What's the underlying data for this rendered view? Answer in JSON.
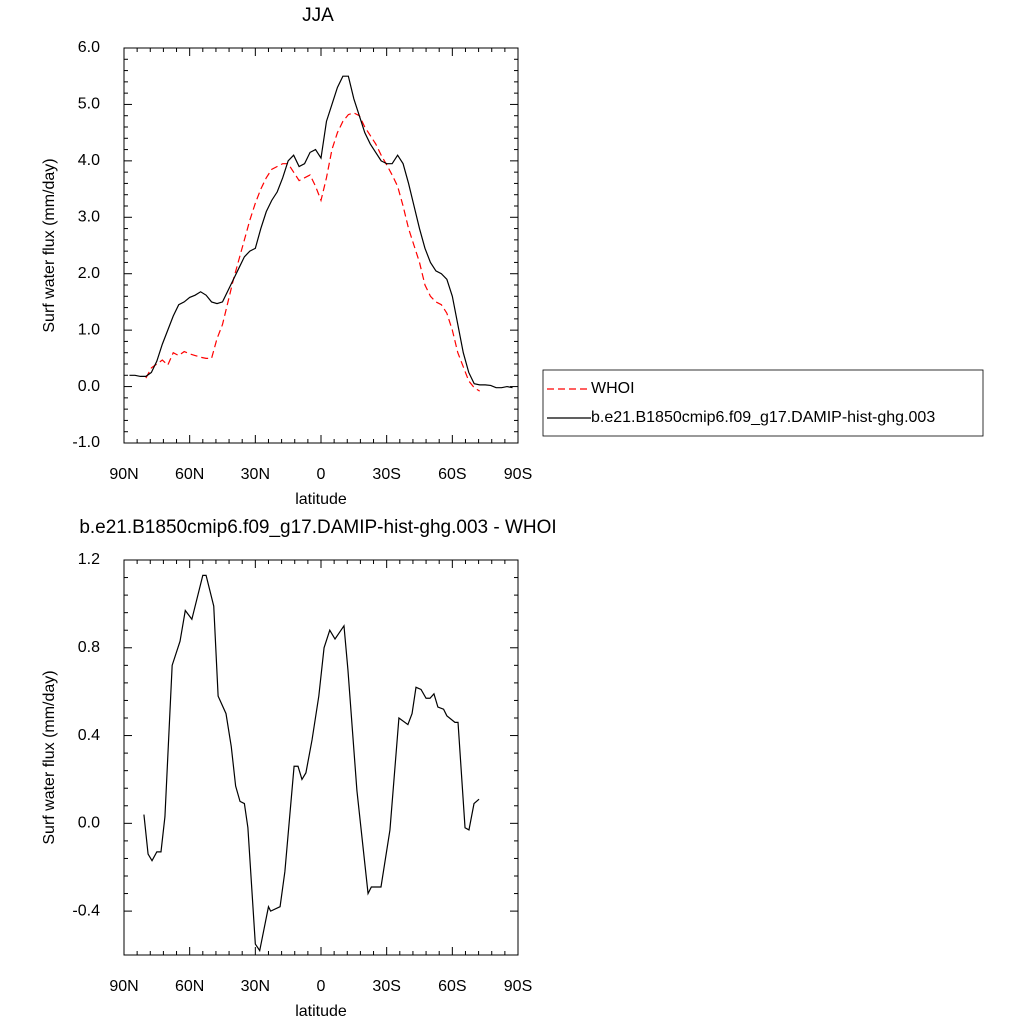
{
  "chart_data": [
    {
      "type": "line",
      "title": "JJA",
      "x_label": "latitude",
      "y_label": "Surf water flux (mm/day)",
      "xlim": [
        90,
        -90
      ],
      "xticks": [
        {
          "value": 90,
          "label": "90N"
        },
        {
          "value": 60,
          "label": "60N"
        },
        {
          "value": 30,
          "label": "30N"
        },
        0,
        {
          "value": -30,
          "label": "30S"
        },
        {
          "value": -60,
          "label": "60S"
        },
        {
          "value": -90,
          "label": "90S"
        }
      ],
      "ylim": [
        -1,
        6
      ],
      "yticks": [
        {
          "value": 6,
          "label": "6.0"
        },
        {
          "value": 5,
          "label": "5.0"
        },
        {
          "value": 4,
          "label": "4.0"
        },
        {
          "value": 3,
          "label": "3.0"
        },
        {
          "value": 2,
          "label": "2.0"
        },
        {
          "value": 1,
          "label": "1.0"
        },
        {
          "value": 0,
          "label": "0.0"
        },
        {
          "value": -1,
          "label": "-1.0"
        }
      ],
      "legend": "right",
      "x": [
        87.5,
        85,
        82.5,
        80,
        77.5,
        75,
        72.5,
        70,
        67.5,
        65,
        62.5,
        60,
        57.5,
        55,
        52.5,
        50,
        47.5,
        45,
        42.5,
        40,
        37.5,
        35,
        32.5,
        30,
        27.5,
        25,
        22.5,
        20,
        17.5,
        15,
        12.5,
        10,
        7.5,
        5,
        2.5,
        0,
        -2.5,
        -5,
        -7.5,
        -10,
        -12.5,
        -15,
        -17.5,
        -20,
        -22.5,
        -25,
        -27.5,
        -30,
        -32.5,
        -35,
        -37.5,
        -40,
        -42.5,
        -45,
        -47.5,
        -50,
        -52.5,
        -55,
        -57.5,
        -60,
        -62.5,
        -65,
        -67.5,
        -70,
        -72.5,
        -75,
        -77.5,
        -80,
        -82.5,
        -85,
        -87.5
      ],
      "series": [
        {
          "name": "WHOI",
          "color": "#ff0000",
          "dashed": true,
          "values": [
            null,
            null,
            null,
            0.15,
            0.33,
            0.4,
            0.47,
            0.38,
            0.6,
            0.55,
            0.62,
            0.58,
            0.55,
            0.52,
            0.5,
            0.5,
            0.85,
            1.1,
            1.5,
            1.9,
            2.25,
            2.6,
            2.95,
            3.25,
            3.5,
            3.7,
            3.85,
            3.9,
            3.95,
            3.95,
            3.8,
            3.65,
            3.7,
            3.75,
            3.55,
            3.3,
            3.7,
            4.2,
            4.5,
            4.7,
            4.82,
            4.85,
            4.8,
            4.6,
            4.45,
            4.3,
            4.1,
            3.93,
            3.75,
            3.55,
            3.2,
            2.8,
            2.5,
            2.2,
            1.8,
            1.6,
            1.5,
            1.45,
            1.3,
            1.0,
            0.6,
            0.35,
            0.1,
            -0.02,
            -0.08,
            null,
            null,
            null,
            null,
            null,
            null
          ]
        },
        {
          "name": "b.e21.B1850cmip6.f09_g17.DAMIP-hist-ghg.003",
          "color": "#000000",
          "dashed": false,
          "values": [
            0.2,
            0.2,
            0.18,
            0.18,
            0.25,
            0.45,
            0.75,
            1.0,
            1.25,
            1.45,
            1.5,
            1.58,
            1.62,
            1.68,
            1.62,
            1.5,
            1.47,
            1.5,
            1.7,
            1.9,
            2.1,
            2.3,
            2.4,
            2.45,
            2.8,
            3.1,
            3.3,
            3.45,
            3.7,
            4.0,
            4.1,
            3.9,
            3.95,
            4.15,
            4.2,
            4.05,
            4.7,
            5.0,
            5.3,
            5.5,
            5.5,
            5.1,
            4.8,
            4.5,
            4.3,
            4.15,
            4.0,
            3.95,
            3.95,
            4.1,
            3.95,
            3.6,
            3.2,
            2.8,
            2.45,
            2.2,
            2.05,
            2.0,
            1.9,
            1.6,
            1.1,
            0.6,
            0.25,
            0.05,
            0.03,
            0.03,
            0.02,
            -0.02,
            -0.02,
            0.0,
            -0.02
          ]
        }
      ]
    },
    {
      "type": "line",
      "title": "b.e21.B1850cmip6.f09_g17.DAMIP-hist-ghg.003 - WHOI",
      "x_label": "latitude",
      "y_label": "Surf water flux (mm/day)",
      "xlim": [
        90,
        -90
      ],
      "xticks": [
        {
          "value": 90,
          "label": "90N"
        },
        {
          "value": 60,
          "label": "60N"
        },
        {
          "value": 30,
          "label": "30N"
        },
        0,
        {
          "value": -30,
          "label": "30S"
        },
        {
          "value": -60,
          "label": "60S"
        },
        {
          "value": -90,
          "label": "90S"
        }
      ],
      "ylim": [
        -0.6,
        1.2
      ],
      "yticks": [
        1.2,
        0.8,
        0.4,
        {
          "value": 0,
          "label": "0.0"
        },
        -0.4
      ],
      "x": [
        80.9,
        79,
        77.2,
        75,
        73.1,
        71.3,
        68,
        64.4,
        62,
        59,
        54,
        52.5,
        49,
        47,
        43.4,
        41,
        39,
        37,
        35,
        33.4,
        30,
        28,
        24,
        23,
        18.7,
        16.5,
        12.3,
        10.5,
        8.7,
        6.9,
        4.1,
        1,
        -1.4,
        -4,
        -6.4,
        -10.5,
        -12.3,
        -16.4,
        -21.5,
        -23,
        -27.4,
        -31.5,
        -35.6,
        -39.7,
        -41.6,
        -43.4,
        -45.7,
        -48,
        -49.8,
        -51.6,
        -53.4,
        -56,
        -57.5,
        -61.2,
        -62.6,
        -65.8,
        -67.6,
        -69.9,
        -72.2
      ],
      "series": [
        {
          "color": "#000000",
          "dashed": false,
          "values": [
            0.04,
            -0.14,
            -0.17,
            -0.13,
            -0.13,
            0.03,
            0.72,
            0.83,
            0.97,
            0.93,
            1.13,
            1.13,
            0.99,
            0.58,
            0.5,
            0.35,
            0.17,
            0.1,
            0.09,
            -0.02,
            -0.55,
            -0.58,
            -0.38,
            -0.4,
            -0.38,
            -0.22,
            0.26,
            0.26,
            0.2,
            0.23,
            0.38,
            0.58,
            0.8,
            0.88,
            0.84,
            0.9,
            0.7,
            0.15,
            -0.32,
            -0.29,
            -0.29,
            -0.03,
            0.48,
            0.45,
            0.5,
            0.62,
            0.61,
            0.57,
            0.57,
            0.59,
            0.53,
            0.52,
            0.49,
            0.46,
            0.46,
            -0.02,
            -0.03,
            0.09,
            0.11
          ]
        }
      ]
    }
  ]
}
